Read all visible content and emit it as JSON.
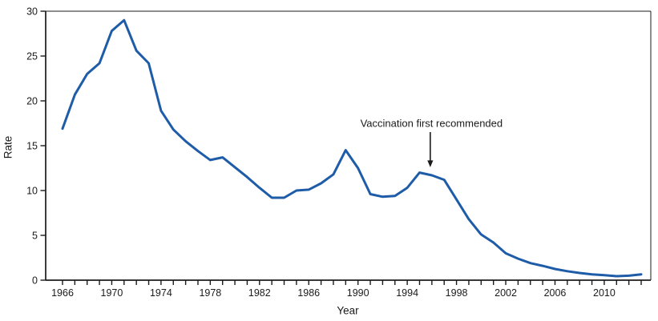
{
  "chart_data": {
    "type": "line",
    "title": "",
    "xlabel": "Year",
    "ylabel": "Rate",
    "ylim": [
      0,
      30
    ],
    "y_ticks": [
      0,
      5,
      10,
      15,
      20,
      25,
      30
    ],
    "x_tick_label_years": [
      1966,
      1970,
      1974,
      1978,
      1982,
      1986,
      1990,
      1994,
      1998,
      2002,
      2006,
      2010
    ],
    "x_minor_tick_interval": 1,
    "grid": false,
    "legend": "none",
    "line_color": "#1e5ca8",
    "axis_color": "#1b1b1b",
    "years": [
      1966,
      1967,
      1968,
      1969,
      1970,
      1971,
      1972,
      1973,
      1974,
      1975,
      1976,
      1977,
      1978,
      1979,
      1980,
      1981,
      1982,
      1983,
      1984,
      1985,
      1986,
      1987,
      1988,
      1989,
      1990,
      1991,
      1992,
      1993,
      1994,
      1995,
      1996,
      1997,
      1998,
      1999,
      2000,
      2001,
      2002,
      2003,
      2004,
      2005,
      2006,
      2007,
      2008,
      2009,
      2010,
      2011,
      2012,
      2013
    ],
    "values": [
      16.9,
      20.7,
      23.0,
      24.2,
      27.8,
      29.0,
      25.6,
      24.2,
      18.9,
      16.8,
      15.5,
      14.4,
      13.4,
      13.7,
      12.6,
      11.5,
      10.3,
      9.2,
      9.2,
      10.0,
      10.1,
      10.8,
      11.8,
      14.5,
      12.5,
      9.6,
      9.3,
      9.4,
      10.3,
      12.0,
      11.7,
      11.2,
      9.0,
      6.8,
      5.1,
      4.2,
      3.0,
      2.4,
      1.9,
      1.6,
      1.25,
      1.0,
      0.8,
      0.65,
      0.55,
      0.45,
      0.5,
      0.65
    ],
    "annotation": {
      "text": "Vaccination first recommended",
      "target_year": 1996,
      "arrow_tip_value": 12.6
    }
  }
}
